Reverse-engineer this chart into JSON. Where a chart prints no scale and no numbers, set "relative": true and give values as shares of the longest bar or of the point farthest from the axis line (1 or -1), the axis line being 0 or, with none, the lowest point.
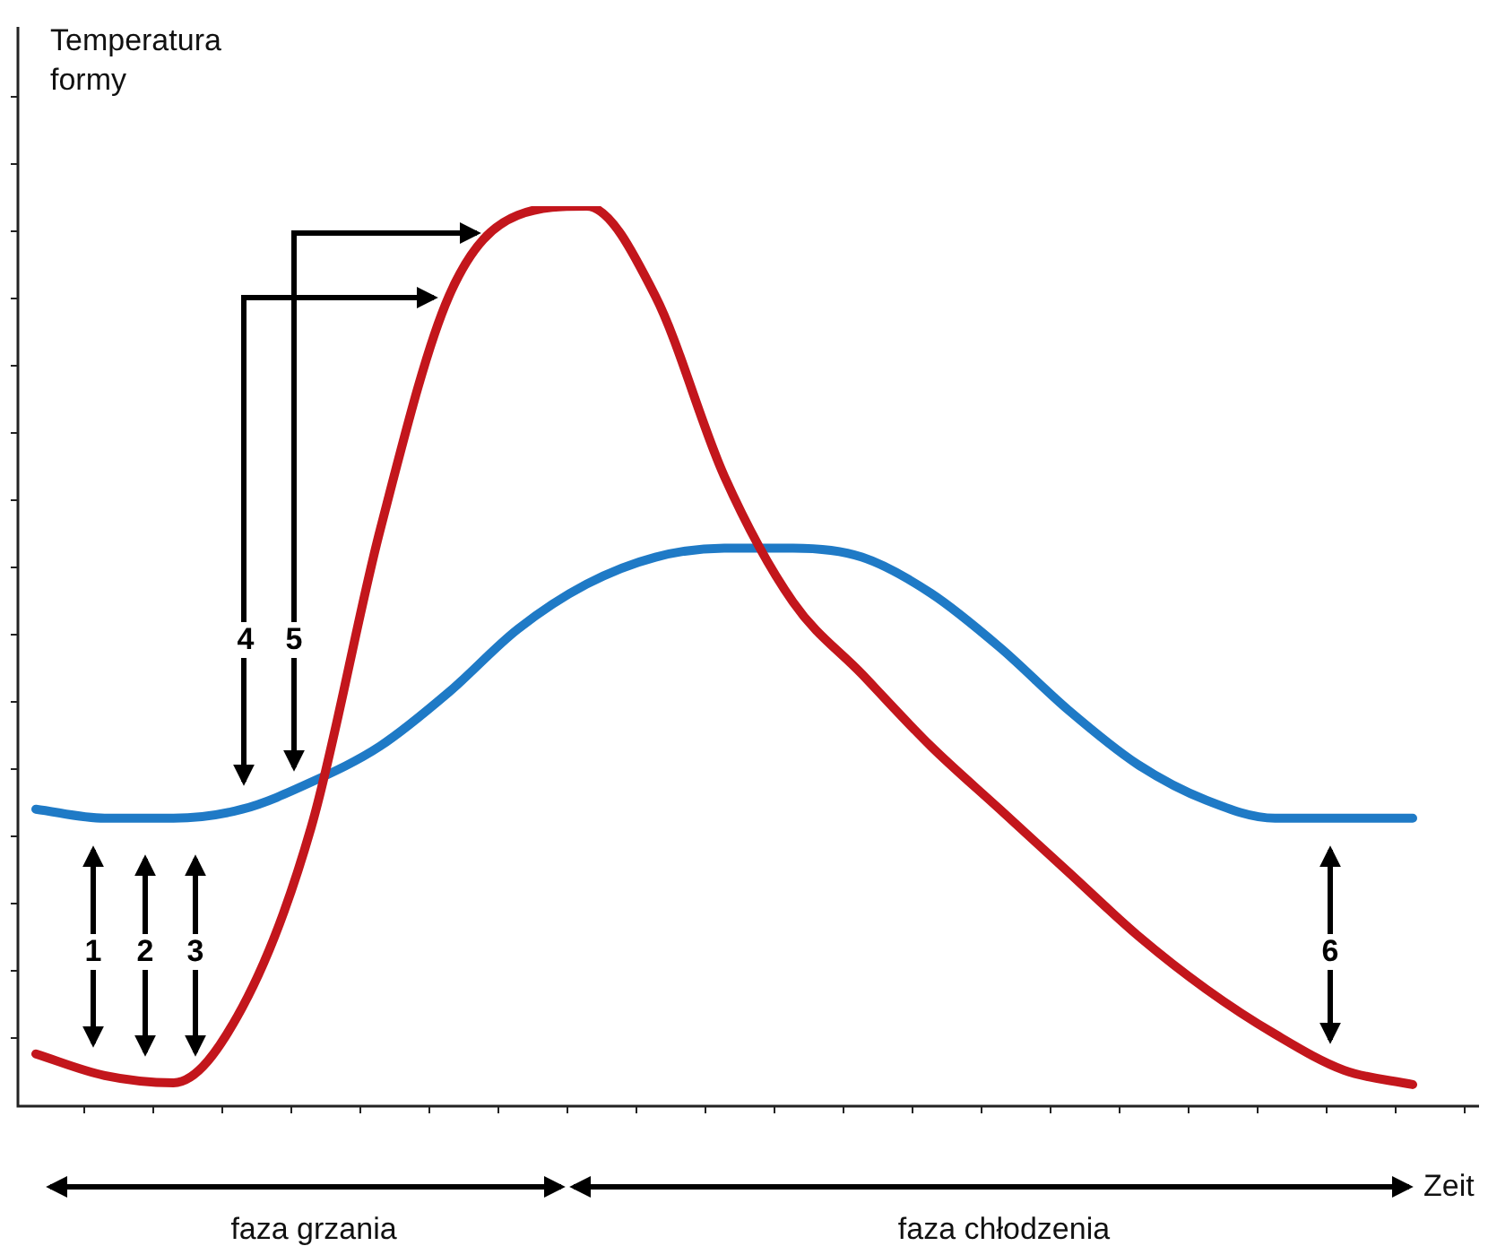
{
  "chart_data": {
    "type": "line",
    "relative": true,
    "ylabel": "Temperatura formy",
    "xlabel": "Zeit",
    "marker": "none",
    "categories": [
      null,
      null,
      null,
      null,
      null,
      null,
      null,
      null,
      null,
      null,
      null,
      null,
      null,
      null,
      null,
      null,
      null,
      null,
      null,
      null,
      null
    ],
    "series": [
      {
        "color": "#c3161c",
        "values": [
          0.058,
          0.034,
          0.026,
          0.11,
          0.31,
          0.64,
          0.9,
          0.99,
          1.0,
          0.9,
          0.7,
          0.56,
          0.48,
          0.4,
          0.33,
          0.26,
          0.19,
          0.13,
          0.08,
          0.04,
          0.024
        ]
      },
      {
        "color": "#1f7ac6",
        "values": [
          0.33,
          0.32,
          0.32,
          0.33,
          0.36,
          0.4,
          0.46,
          0.53,
          0.58,
          0.61,
          0.62,
          0.62,
          0.61,
          0.57,
          0.51,
          0.44,
          0.38,
          0.34,
          0.32,
          0.32,
          0.32
        ]
      }
    ],
    "annotations": [
      "1",
      "2",
      "3",
      "4",
      "5",
      "6",
      "faza grzania",
      "faza chłodzenia"
    ]
  }
}
